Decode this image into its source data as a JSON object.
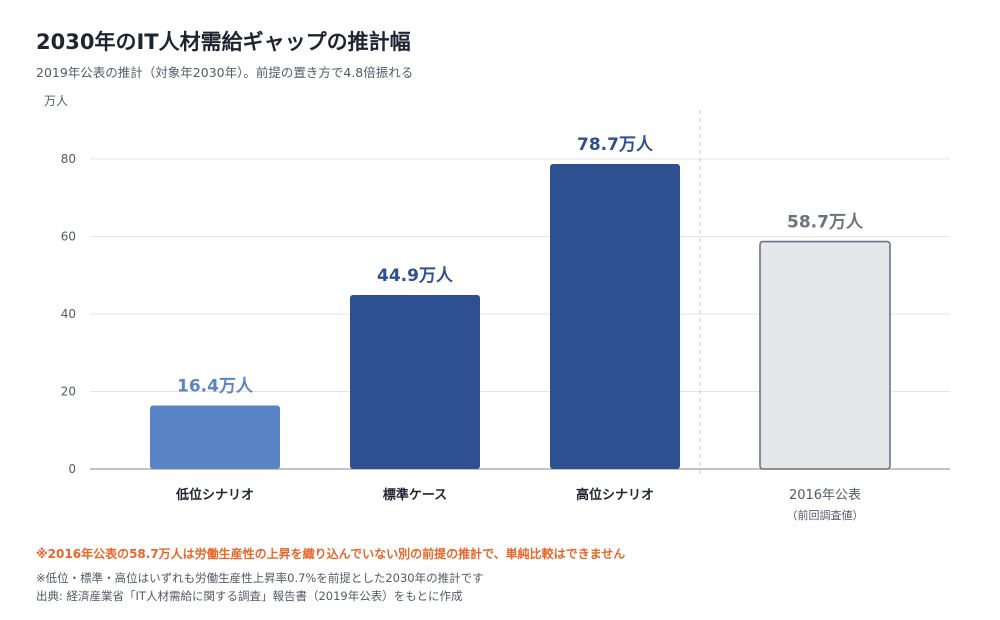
{
  "header": {
    "title": "2030年のIT人材需給ギャップの推計幅",
    "subtitle": "2019年公表の推計（対象年2030年）。前提の置き方で4.8倍振れる"
  },
  "notes": {
    "warning": "※2016年公表の58.7万人は労働生産性の上昇を織り込んでいない別の前提の推計で、単純比較はできません",
    "assumption": "※低位・標準・高位はいずれも労働生産性上昇率0.7%を前提とした2030年の推計です",
    "source": "出典: 経済産業省「IT人材需給に関する調査」報告書（2019年公表）をもとに作成"
  },
  "chart_data": {
    "type": "bar",
    "ylabel": "万人",
    "ylim": [
      0,
      80
    ],
    "yticks": [
      0,
      20,
      40,
      60,
      80
    ],
    "grid": true,
    "categories": [
      "低位シナリオ",
      "標準ケース",
      "高位シナリオ",
      "2016年公表"
    ],
    "category_sublabels": [
      "",
      "",
      "",
      "（前回調査値）"
    ],
    "values": [
      16.4,
      44.9,
      78.7,
      58.7
    ],
    "value_labels": [
      "16.4万人",
      "44.9万人",
      "78.7万人",
      "58.7万人"
    ],
    "colors": {
      "low": "#5b84c7",
      "standard": "#2e5090",
      "high": "#2e5090",
      "previous_fill": "#e6e7ea",
      "previous_stroke": "#6e7280",
      "previous_label": "#6e7280"
    }
  }
}
